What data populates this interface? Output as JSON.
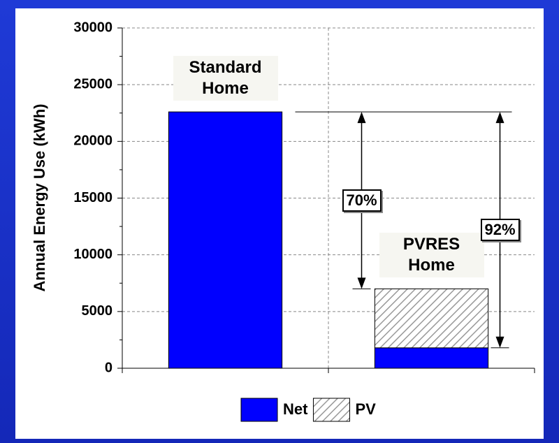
{
  "chart_data": {
    "type": "stacked-bar",
    "y_label": "Annual Energy Use (kWh)",
    "categories": [
      "Standard Home",
      "PVRES Home"
    ],
    "series": [
      {
        "name": "Net",
        "color": "#0000ff",
        "values": [
          22600,
          1800
        ]
      },
      {
        "name": "PV",
        "color": "#b8b8b8",
        "values": [
          null,
          5200
        ]
      }
    ],
    "ylim": [
      0,
      30000
    ],
    "yticks": [
      0,
      5000,
      10000,
      15000,
      20000,
      25000,
      30000
    ],
    "grid": true,
    "annotations": [
      "70%",
      "92%"
    ]
  }
}
